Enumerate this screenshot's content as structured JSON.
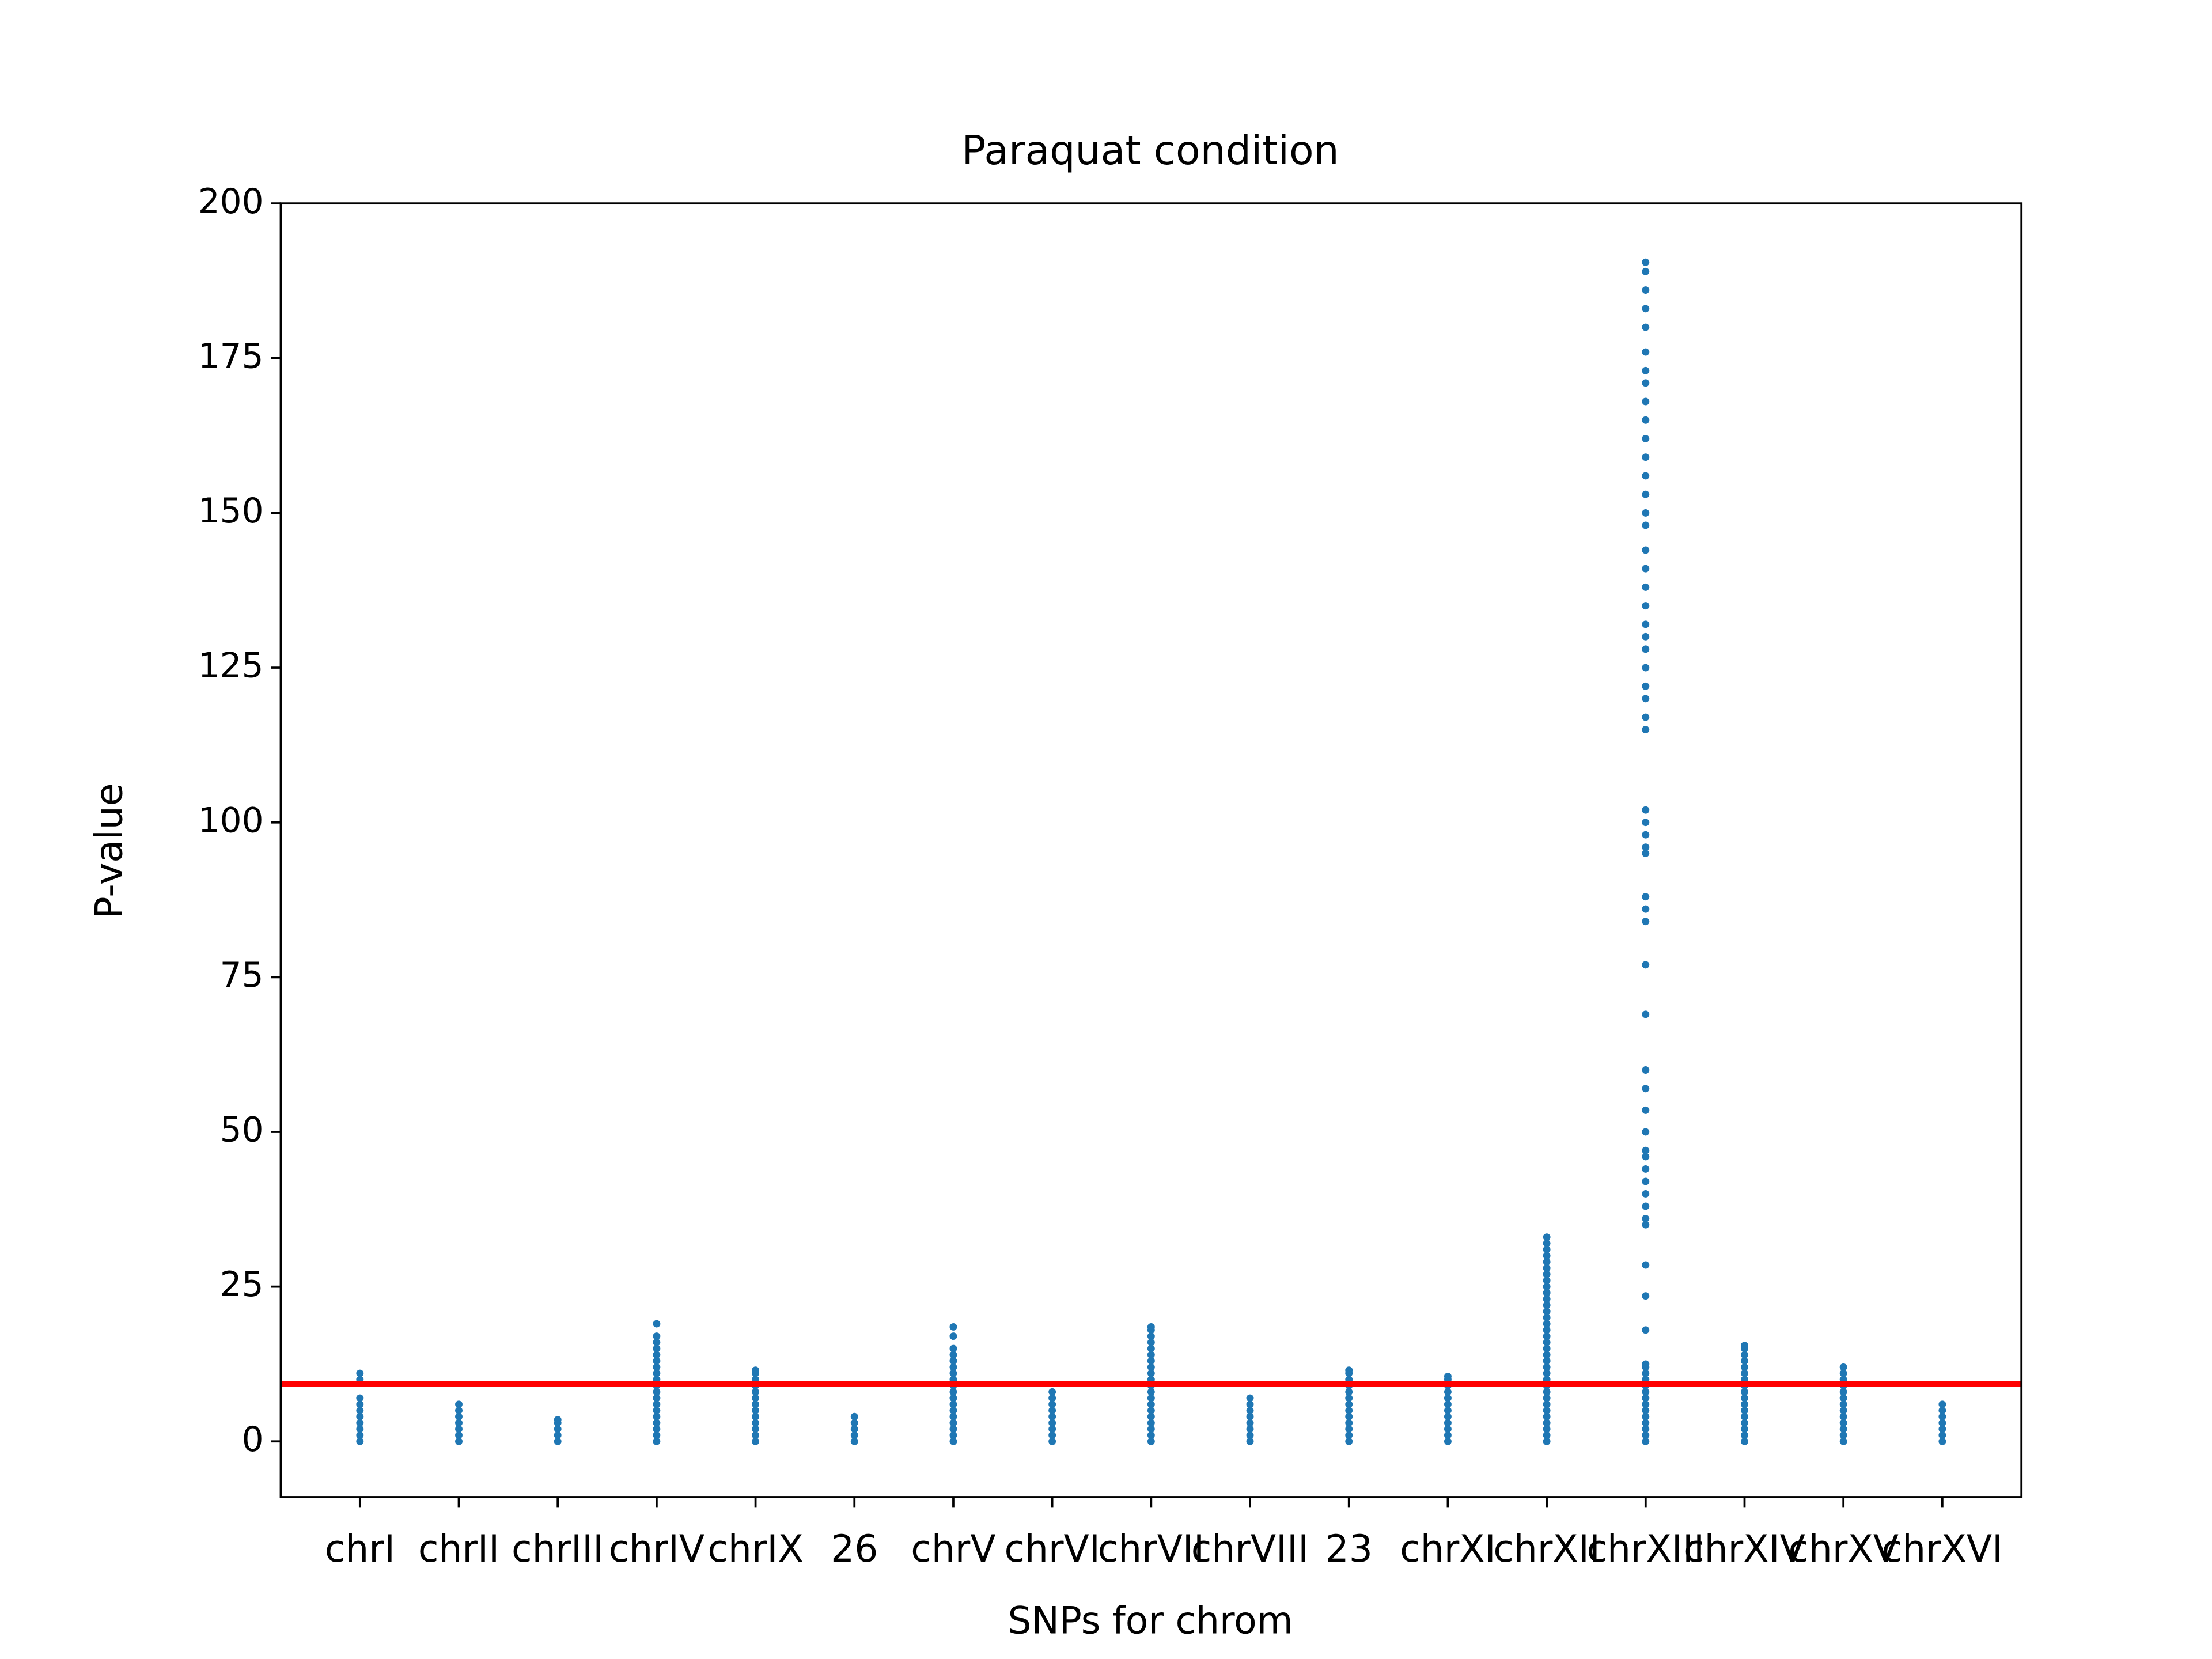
{
  "chart_data": {
    "type": "strip",
    "title": "Paraquat condition",
    "xlabel": "SNPs for chrom",
    "ylabel": "P-value",
    "categories": [
      "chrI",
      "chrII",
      "chrIII",
      "chrIV",
      "chrIX",
      "26",
      "chrV",
      "chrVI",
      "chrVII",
      "chrVIII",
      "23",
      "chrXI",
      "chrXII",
      "chrXIII",
      "chrXIV",
      "chrXV",
      "chrXVI"
    ],
    "values": [
      [
        0,
        1,
        2,
        3,
        4,
        5,
        6,
        7,
        10,
        11
      ],
      [
        0,
        1,
        2,
        3,
        4,
        5,
        6
      ],
      [
        0,
        1,
        2,
        3,
        3.5
      ],
      [
        0,
        1,
        2,
        3,
        4,
        5,
        6,
        7,
        8,
        9,
        10,
        11,
        12,
        13,
        14,
        15,
        16,
        17,
        19
      ],
      [
        0,
        1,
        2,
        3,
        4,
        5,
        6,
        7,
        8,
        9,
        10,
        11,
        11.5
      ],
      [
        0,
        1,
        2,
        3,
        4
      ],
      [
        0,
        1,
        2,
        3,
        4,
        5,
        6,
        7,
        8,
        9,
        10,
        11,
        12,
        13,
        14,
        15,
        17,
        18.5
      ],
      [
        0,
        1,
        2,
        3,
        4,
        5,
        6,
        7,
        8
      ],
      [
        0,
        1,
        2,
        3,
        4,
        5,
        6,
        7,
        8,
        9,
        10,
        11,
        12,
        13,
        14,
        15,
        16,
        17,
        18,
        18.5
      ],
      [
        0,
        1,
        2,
        3,
        4,
        5,
        6,
        7
      ],
      [
        0,
        1,
        2,
        3,
        4,
        5,
        6,
        7,
        8,
        9,
        10,
        11,
        11.5
      ],
      [
        0,
        1,
        2,
        3,
        4,
        5,
        6,
        7,
        8,
        9,
        10,
        10.5
      ],
      [
        0,
        1,
        2,
        3,
        4,
        5,
        6,
        7,
        8,
        9,
        10,
        11,
        12,
        13,
        14,
        15,
        16,
        17,
        18,
        19,
        20,
        21,
        22,
        23,
        24,
        25,
        26,
        27,
        28,
        29,
        30,
        31,
        32,
        33
      ],
      [
        0,
        1,
        2,
        3,
        4,
        5,
        6,
        7,
        8,
        9,
        10,
        11,
        12,
        12.5,
        18,
        23.5,
        28.5,
        35,
        36,
        38,
        40,
        42,
        44,
        46,
        47,
        50,
        53.5,
        57,
        60,
        69,
        77,
        84,
        86,
        88,
        95,
        96,
        98,
        100,
        102,
        115,
        117,
        120,
        122,
        125,
        128,
        130,
        132,
        135,
        138,
        141,
        144,
        148,
        150,
        153,
        156,
        159,
        162,
        165,
        168,
        171,
        173,
        176,
        180,
        183,
        186,
        189,
        190.5
      ],
      [
        0,
        1,
        2,
        3,
        4,
        5,
        6,
        7,
        8,
        9,
        10,
        11,
        12,
        13,
        14,
        15,
        15.5
      ],
      [
        0,
        1,
        2,
        3,
        4,
        5,
        6,
        7,
        8,
        9,
        10,
        11,
        12
      ],
      [
        0,
        1,
        2,
        3,
        4,
        5,
        6
      ]
    ],
    "color": "#1f77b4",
    "threshold": {
      "value": 9.3,
      "color": "#ff0000"
    },
    "ylim": [
      -9,
      200
    ],
    "yticks": [
      0,
      25,
      50,
      75,
      100,
      125,
      150,
      175,
      200
    ]
  }
}
